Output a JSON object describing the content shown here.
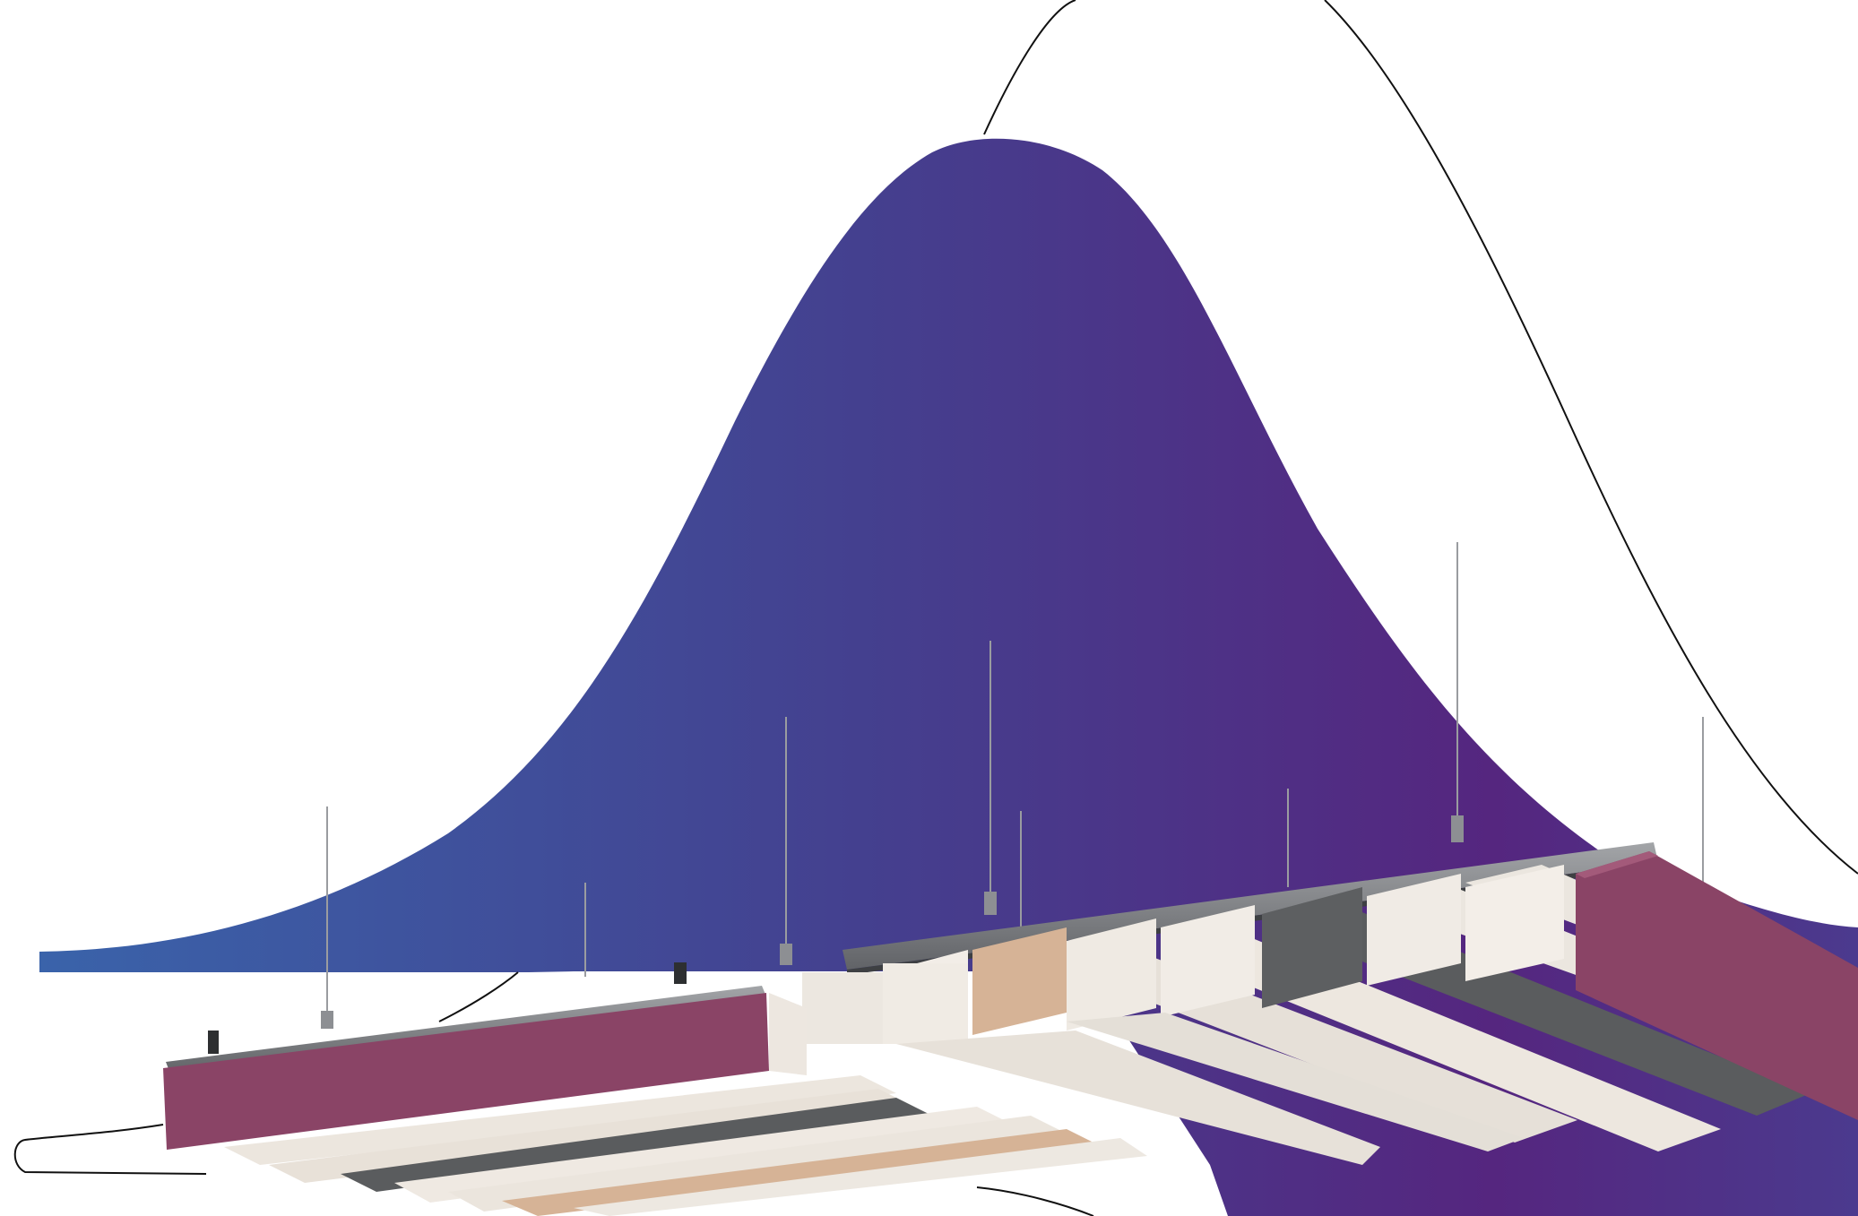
{
  "scene": {
    "background_color": "#ffffff",
    "curve_gradient": [
      "#3a62a8",
      "#523088",
      "#54267f"
    ],
    "outline_color": "#111111",
    "panel_colors": {
      "berry": "#8a4466",
      "cream": "#f1ece6",
      "oak": "#d6b396",
      "charcoal": "#5c5e60",
      "rail": "#7e8084"
    }
  }
}
